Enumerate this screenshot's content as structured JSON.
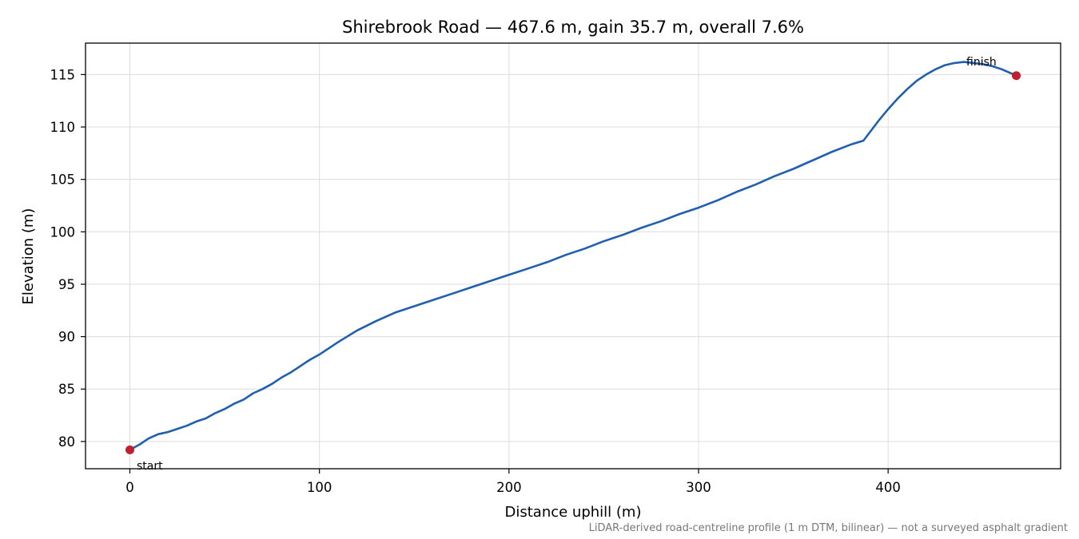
{
  "chart_data": {
    "type": "line",
    "title": "Shirebrook Road — 467.6 m, gain 35.7 m, overall 7.6%",
    "xlabel": "Distance uphill (m)",
    "ylabel": "Elevation (m)",
    "footnote": "LiDAR-derived road-centreline profile (1 m DTM, bilinear) — not a surveyed asphalt gradient",
    "xlim": [
      -23.4,
      491.0
    ],
    "ylim": [
      77.4,
      118.0
    ],
    "xticks": [
      0,
      100,
      200,
      300,
      400
    ],
    "xtick_labels": [
      "0",
      "100",
      "200",
      "300",
      "400"
    ],
    "yticks": [
      80,
      85,
      90,
      95,
      100,
      105,
      110,
      115
    ],
    "ytick_labels": [
      "80",
      "85",
      "90",
      "95",
      "100",
      "105",
      "110",
      "115"
    ],
    "grid": true,
    "line_color": "#1f5fad",
    "marker_color": "#c0202e",
    "series": [
      {
        "x": [
          0,
          5,
          10,
          15,
          20,
          25,
          30,
          35,
          40,
          45,
          50,
          55,
          60,
          65,
          70,
          75,
          80,
          85,
          90,
          95,
          100,
          110,
          120,
          130,
          140,
          150,
          160,
          170,
          180,
          190,
          200,
          210,
          220,
          230,
          240,
          250,
          260,
          270,
          280,
          290,
          300,
          310,
          320,
          330,
          340,
          350,
          360,
          370,
          380,
          387,
          395,
          400,
          405,
          410,
          415,
          420,
          425,
          430,
          435,
          440,
          445,
          450,
          455,
          460,
          467.6
        ],
        "y": [
          79.2,
          79.7,
          80.3,
          80.7,
          80.9,
          81.2,
          81.5,
          81.9,
          82.2,
          82.7,
          83.1,
          83.6,
          84.0,
          84.6,
          85.0,
          85.5,
          86.1,
          86.6,
          87.2,
          87.8,
          88.3,
          89.5,
          90.6,
          91.5,
          92.3,
          92.9,
          93.5,
          94.1,
          94.7,
          95.3,
          95.9,
          96.5,
          97.1,
          97.8,
          98.4,
          99.1,
          99.7,
          100.4,
          101.0,
          101.7,
          102.3,
          103.0,
          103.8,
          104.5,
          105.3,
          106.0,
          106.8,
          107.6,
          108.3,
          108.7,
          110.6,
          111.7,
          112.7,
          113.6,
          114.4,
          115.0,
          115.5,
          115.9,
          116.1,
          116.2,
          116.1,
          116.0,
          115.8,
          115.5,
          114.9
        ]
      }
    ],
    "annotations": [
      {
        "text": "start",
        "x": 0,
        "y": 79.2
      },
      {
        "text": "finish",
        "x": 467.6,
        "y": 114.9
      }
    ]
  }
}
